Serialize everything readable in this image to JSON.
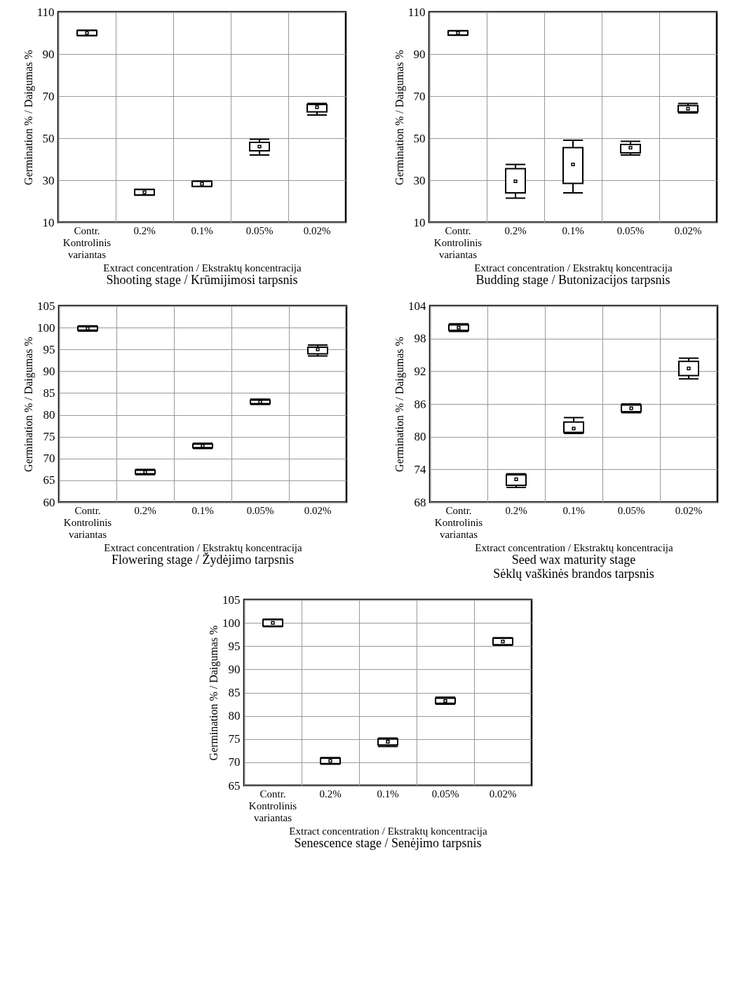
{
  "chart_data": [
    {
      "type": "box",
      "title": "Shooting stage / Krūmijimosi tarpsnis",
      "xlabel": "Extract concentration / Ekstraktų koncentracija",
      "ylabel": "Germination % / Daigumas %",
      "categories": [
        "Contr.\nKontrolinis\nvariantas",
        "0.2%",
        "0.1%",
        "0.05%",
        "0.02%"
      ],
      "ylim": [
        10,
        110
      ],
      "yticks": [
        10,
        30,
        50,
        70,
        90,
        110
      ],
      "grid": true,
      "boxes": [
        {
          "low": 98.7,
          "q1": 98.8,
          "median": 100,
          "q3": 101.2,
          "high": 101.3
        },
        {
          "low": 22.9,
          "q1": 23,
          "median": 24.3,
          "q3": 25.6,
          "high": 25.7
        },
        {
          "low": 27,
          "q1": 27.1,
          "median": 28.3,
          "q3": 29.5,
          "high": 29.6
        },
        {
          "low": 42,
          "q1": 44,
          "median": 46,
          "q3": 48,
          "high": 49.5
        },
        {
          "low": 61,
          "q1": 62.5,
          "median": 64.7,
          "q3": 66,
          "high": 66.5
        }
      ]
    },
    {
      "type": "box",
      "title": "Budding stage / Butonizacijos tarpsnis",
      "xlabel": "Extract concentration / Ekstraktų koncentracija",
      "ylabel": "Germination % / Daigumas %",
      "categories": [
        "Contr.\nKontrolinis\nvariantas",
        "0.2%",
        "0.1%",
        "0.05%",
        "0.02%"
      ],
      "ylim": [
        10,
        110
      ],
      "yticks": [
        10,
        30,
        50,
        70,
        90,
        110
      ],
      "grid": true,
      "boxes": [
        {
          "low": 98.9,
          "q1": 99,
          "median": 100,
          "q3": 101,
          "high": 101.1
        },
        {
          "low": 21.5,
          "q1": 24,
          "median": 29.5,
          "q3": 35.5,
          "high": 37.5
        },
        {
          "low": 24,
          "q1": 28.5,
          "median": 37.5,
          "q3": 45.5,
          "high": 49
        },
        {
          "low": 42,
          "q1": 43,
          "median": 45.5,
          "q3": 47,
          "high": 48.5
        },
        {
          "low": 62,
          "q1": 62.5,
          "median": 64,
          "q3": 65.5,
          "high": 66.5
        }
      ]
    },
    {
      "type": "box",
      "title": "Flowering stage / Žydėjimo tarpsnis",
      "xlabel": "Extract concentration / Ekstraktų koncentracija",
      "ylabel": "Germination % / Daigumas %",
      "categories": [
        "Contr.\nKontrolinis\nvariantas",
        "0.2%",
        "0.1%",
        "0.05%",
        "0.02%"
      ],
      "ylim": [
        60,
        105
      ],
      "yticks": [
        60,
        65,
        70,
        75,
        80,
        85,
        90,
        95,
        100,
        105
      ],
      "grid": true,
      "boxes": [
        {
          "low": 99.2,
          "q1": 99.4,
          "median": 99.8,
          "q3": 100.2,
          "high": 100.4
        },
        {
          "low": 66.3,
          "q1": 66.5,
          "median": 66.9,
          "q3": 67.3,
          "high": 67.5
        },
        {
          "low": 72.3,
          "q1": 72.5,
          "median": 72.9,
          "q3": 73.3,
          "high": 73.5
        },
        {
          "low": 82.4,
          "q1": 82.6,
          "median": 83,
          "q3": 83.4,
          "high": 83.6
        },
        {
          "low": 93.5,
          "q1": 94,
          "median": 95,
          "q3": 95.5,
          "high": 96
        }
      ]
    },
    {
      "type": "box",
      "title": "Seed wax maturity stage\nSėklų vaškinės brandos tarpsnis",
      "xlabel": "Extract concentration / Ekstraktų koncentracija",
      "ylabel": "Germination % / Daigumas %",
      "categories": [
        "Contr.\nKontrolinis\nvariantas",
        "0.2%",
        "0.1%",
        "0.05%",
        "0.02%"
      ],
      "ylim": [
        68,
        104
      ],
      "yticks": [
        68,
        74,
        80,
        86,
        92,
        98,
        104
      ],
      "grid": true,
      "boxes": [
        {
          "low": 99.3,
          "q1": 99.5,
          "median": 100,
          "q3": 100.5,
          "high": 100.7
        },
        {
          "low": 70.7,
          "q1": 71.1,
          "median": 72.2,
          "q3": 73,
          "high": 73.2
        },
        {
          "low": 80.6,
          "q1": 80.8,
          "median": 81.5,
          "q3": 82.7,
          "high": 83.5
        },
        {
          "low": 84.4,
          "q1": 84.6,
          "median": 85.2,
          "q3": 85.8,
          "high": 86
        },
        {
          "low": 90.6,
          "q1": 91.2,
          "median": 92.5,
          "q3": 93.8,
          "high": 94.4
        }
      ]
    },
    {
      "type": "box",
      "title": "Senescence stage / Senėjimo tarpsnis",
      "xlabel": "Extract concentration / Ekstraktų koncentracija",
      "ylabel": "Germination % / Daigumas %",
      "categories": [
        "Contr.\nKontrolinis\nvariantas",
        "0.2%",
        "0.1%",
        "0.05%",
        "0.02%"
      ],
      "ylim": [
        65,
        105
      ],
      "yticks": [
        65,
        70,
        75,
        80,
        85,
        90,
        95,
        100,
        105
      ],
      "grid": true,
      "boxes": [
        {
          "low": 99.2,
          "q1": 99.3,
          "median": 100,
          "q3": 100.7,
          "high": 100.8
        },
        {
          "low": 69.6,
          "q1": 69.7,
          "median": 70.3,
          "q3": 70.9,
          "high": 71
        },
        {
          "low": 73.4,
          "q1": 73.7,
          "median": 74.4,
          "q3": 75,
          "high": 75.2
        },
        {
          "low": 82.5,
          "q1": 82.7,
          "median": 83.2,
          "q3": 83.8,
          "high": 84
        },
        {
          "low": 95.2,
          "q1": 95.3,
          "median": 96,
          "q3": 96.7,
          "high": 96.8
        }
      ]
    }
  ]
}
